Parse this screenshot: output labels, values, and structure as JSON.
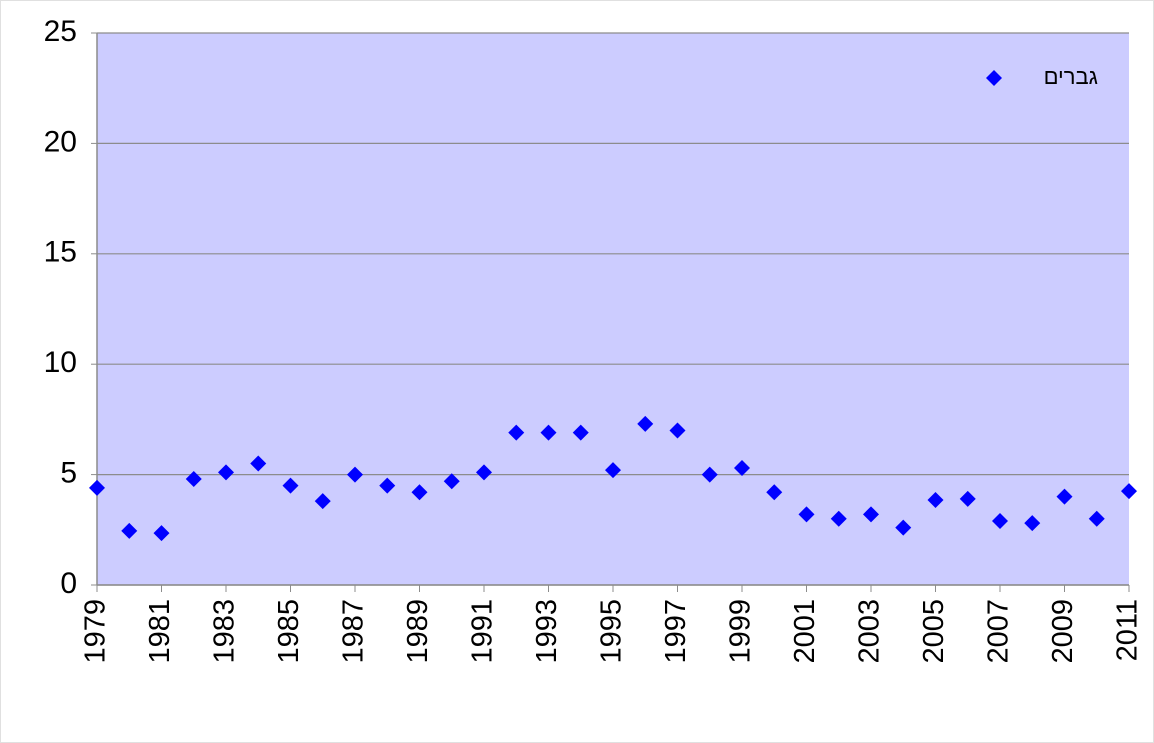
{
  "chart_data": {
    "type": "scatter",
    "x": [
      1979,
      1980,
      1981,
      1982,
      1983,
      1984,
      1985,
      1986,
      1987,
      1988,
      1989,
      1990,
      1991,
      1992,
      1993,
      1994,
      1995,
      1996,
      1997,
      1998,
      1999,
      2000,
      2001,
      2002,
      2003,
      2004,
      2005,
      2006,
      2007,
      2008,
      2009,
      2010,
      2011
    ],
    "series": [
      {
        "name": "גברים",
        "color": "#0000ff",
        "values": [
          4.4,
          2.45,
          2.35,
          4.8,
          5.1,
          5.5,
          4.5,
          3.8,
          5.0,
          4.5,
          4.2,
          4.7,
          5.1,
          6.9,
          6.9,
          6.9,
          5.2,
          7.3,
          7.0,
          5.0,
          5.3,
          4.2,
          3.2,
          3.0,
          3.2,
          2.6,
          3.85,
          3.9,
          2.9,
          2.8,
          4.0,
          3.0,
          4.25
        ]
      }
    ],
    "xlim": [
      1979,
      2011
    ],
    "xticks": [
      1979,
      1981,
      1983,
      1985,
      1987,
      1989,
      1991,
      1993,
      1995,
      1997,
      1999,
      2001,
      2003,
      2005,
      2007,
      2009,
      2011
    ],
    "ylim": [
      0,
      25
    ],
    "yticks": [
      0,
      5,
      10,
      15,
      20,
      25
    ],
    "grid": true,
    "legend": "top-right",
    "background": "#ccccff"
  }
}
